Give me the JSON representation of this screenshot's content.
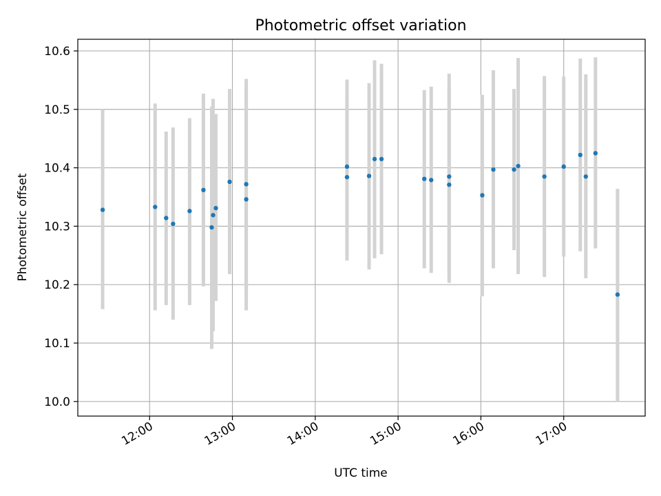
{
  "chart_data": {
    "type": "scatter",
    "title": "Photometric offset variation",
    "xlabel": "UTC time",
    "ylabel": "Photometric offset",
    "grid": true,
    "legend": "none",
    "xlim": [
      "11:08",
      "17:59"
    ],
    "ylim": [
      9.975,
      10.62
    ],
    "x_ticks": [
      "12:00",
      "13:00",
      "14:00",
      "15:00",
      "16:00",
      "17:00"
    ],
    "y_ticks": [
      "10.0",
      "10.1",
      "10.2",
      "10.3",
      "10.4",
      "10.5",
      "10.6"
    ],
    "colors": {
      "marker": "#1f77b4",
      "errorbar": "#d3d3d3",
      "grid": "#b0b0b0"
    },
    "points": [
      {
        "x": "11:26",
        "y": 10.328,
        "lo": 10.158,
        "hi": 10.5
      },
      {
        "x": "12:04",
        "y": 10.333,
        "lo": 10.156,
        "hi": 10.51
      },
      {
        "x": "12:12",
        "y": 10.314,
        "lo": 10.165,
        "hi": 10.462
      },
      {
        "x": "12:17",
        "y": 10.304,
        "lo": 10.14,
        "hi": 10.469
      },
      {
        "x": "12:29",
        "y": 10.326,
        "lo": 10.165,
        "hi": 10.485
      },
      {
        "x": "12:39",
        "y": 10.362,
        "lo": 10.197,
        "hi": 10.527
      },
      {
        "x": "12:45",
        "y": 10.298,
        "lo": 10.09,
        "hi": 10.505
      },
      {
        "x": "12:46",
        "y": 10.319,
        "lo": 10.12,
        "hi": 10.518
      },
      {
        "x": "12:48",
        "y": 10.331,
        "lo": 10.172,
        "hi": 10.492
      },
      {
        "x": "12:58",
        "y": 10.376,
        "lo": 10.218,
        "hi": 10.535
      },
      {
        "x": "13:10",
        "y": 10.346,
        "lo": 10.156,
        "hi": 10.537
      },
      {
        "x": "13:10",
        "y": 10.372,
        "lo": 10.19,
        "hi": 10.552
      },
      {
        "x": "14:23",
        "y": 10.402,
        "lo": 10.252,
        "hi": 10.551
      },
      {
        "x": "14:23",
        "y": 10.384,
        "lo": 10.241,
        "hi": 10.528
      },
      {
        "x": "14:39",
        "y": 10.386,
        "lo": 10.226,
        "hi": 10.545
      },
      {
        "x": "14:43",
        "y": 10.415,
        "lo": 10.245,
        "hi": 10.584
      },
      {
        "x": "14:48",
        "y": 10.415,
        "lo": 10.252,
        "hi": 10.578
      },
      {
        "x": "15:19",
        "y": 10.381,
        "lo": 10.228,
        "hi": 10.533
      },
      {
        "x": "15:24",
        "y": 10.379,
        "lo": 10.22,
        "hi": 10.539
      },
      {
        "x": "15:37",
        "y": 10.385,
        "lo": 10.21,
        "hi": 10.561
      },
      {
        "x": "15:37",
        "y": 10.371,
        "lo": 10.203,
        "hi": 10.538
      },
      {
        "x": "16:01",
        "y": 10.353,
        "lo": 10.18,
        "hi": 10.525
      },
      {
        "x": "16:09",
        "y": 10.397,
        "lo": 10.228,
        "hi": 10.567
      },
      {
        "x": "16:24",
        "y": 10.397,
        "lo": 10.259,
        "hi": 10.535
      },
      {
        "x": "16:27",
        "y": 10.403,
        "lo": 10.218,
        "hi": 10.588
      },
      {
        "x": "16:46",
        "y": 10.385,
        "lo": 10.213,
        "hi": 10.557
      },
      {
        "x": "17:00",
        "y": 10.402,
        "lo": 10.248,
        "hi": 10.556
      },
      {
        "x": "17:12",
        "y": 10.422,
        "lo": 10.257,
        "hi": 10.587
      },
      {
        "x": "17:16",
        "y": 10.385,
        "lo": 10.211,
        "hi": 10.56
      },
      {
        "x": "17:23",
        "y": 10.425,
        "lo": 10.262,
        "hi": 10.589
      },
      {
        "x": "17:39",
        "y": 10.183,
        "lo": 10.0,
        "hi": 10.364
      }
    ]
  }
}
